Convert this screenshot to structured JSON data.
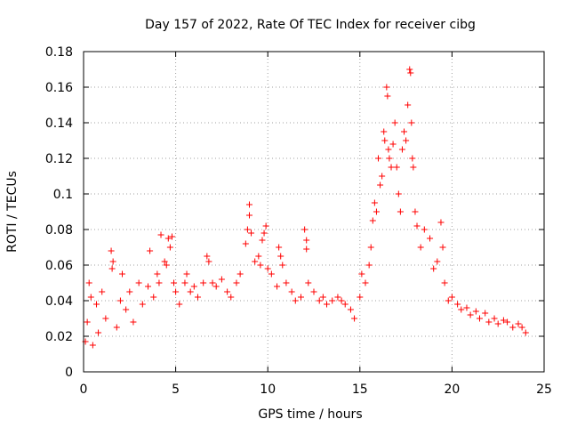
{
  "chart_data": {
    "type": "scatter",
    "title": "Day 157 of 2022, Rate Of TEC Index for receiver cibg",
    "xlabel": "GPS time / hours",
    "ylabel": "ROTI / TECUs",
    "xlim": [
      0,
      25
    ],
    "ylim": [
      0,
      0.18
    ],
    "xticks": [
      "0",
      "5",
      "10",
      "15",
      "20",
      "25"
    ],
    "yticks": [
      "0",
      "0.02",
      "0.04",
      "0.06",
      "0.08",
      "0.1",
      "0.12",
      "0.14",
      "0.16",
      "0.18"
    ],
    "grid": true,
    "marker": "+",
    "color": "#ff0000",
    "series": [
      {
        "points": [
          [
            0.1,
            0.017
          ],
          [
            0.2,
            0.028
          ],
          [
            0.3,
            0.05
          ],
          [
            0.4,
            0.042
          ],
          [
            0.5,
            0.015
          ],
          [
            0.7,
            0.038
          ],
          [
            0.8,
            0.022
          ],
          [
            1.0,
            0.045
          ],
          [
            1.2,
            0.03
          ],
          [
            1.5,
            0.068
          ],
          [
            1.55,
            0.058
          ],
          [
            1.6,
            0.062
          ],
          [
            1.8,
            0.025
          ],
          [
            2.0,
            0.04
          ],
          [
            2.1,
            0.055
          ],
          [
            2.3,
            0.035
          ],
          [
            2.5,
            0.045
          ],
          [
            2.7,
            0.028
          ],
          [
            3.0,
            0.05
          ],
          [
            3.2,
            0.038
          ],
          [
            3.5,
            0.048
          ],
          [
            3.6,
            0.068
          ],
          [
            3.8,
            0.042
          ],
          [
            4.0,
            0.055
          ],
          [
            4.1,
            0.05
          ],
          [
            4.2,
            0.077
          ],
          [
            4.4,
            0.062
          ],
          [
            4.5,
            0.06
          ],
          [
            4.6,
            0.075
          ],
          [
            4.7,
            0.07
          ],
          [
            4.8,
            0.076
          ],
          [
            4.9,
            0.05
          ],
          [
            5.0,
            0.045
          ],
          [
            5.2,
            0.038
          ],
          [
            5.5,
            0.05
          ],
          [
            5.6,
            0.055
          ],
          [
            5.8,
            0.045
          ],
          [
            6.0,
            0.048
          ],
          [
            6.2,
            0.042
          ],
          [
            6.5,
            0.05
          ],
          [
            6.7,
            0.065
          ],
          [
            6.8,
            0.062
          ],
          [
            7.0,
            0.05
          ],
          [
            7.2,
            0.048
          ],
          [
            7.5,
            0.052
          ],
          [
            7.8,
            0.045
          ],
          [
            8.0,
            0.042
          ],
          [
            8.3,
            0.05
          ],
          [
            8.5,
            0.055
          ],
          [
            8.8,
            0.072
          ],
          [
            8.9,
            0.08
          ],
          [
            9.0,
            0.088
          ],
          [
            9.0,
            0.094
          ],
          [
            9.1,
            0.078
          ],
          [
            9.3,
            0.062
          ],
          [
            9.5,
            0.065
          ],
          [
            9.6,
            0.06
          ],
          [
            9.7,
            0.074
          ],
          [
            9.8,
            0.078
          ],
          [
            9.9,
            0.082
          ],
          [
            10.0,
            0.058
          ],
          [
            10.2,
            0.055
          ],
          [
            10.5,
            0.048
          ],
          [
            10.6,
            0.07
          ],
          [
            10.7,
            0.065
          ],
          [
            10.8,
            0.06
          ],
          [
            11.0,
            0.05
          ],
          [
            11.3,
            0.045
          ],
          [
            11.5,
            0.04
          ],
          [
            11.8,
            0.042
          ],
          [
            12.0,
            0.08
          ],
          [
            12.1,
            0.074
          ],
          [
            12.1,
            0.069
          ],
          [
            12.2,
            0.05
          ],
          [
            12.5,
            0.045
          ],
          [
            12.8,
            0.04
          ],
          [
            13.0,
            0.042
          ],
          [
            13.2,
            0.038
          ],
          [
            13.5,
            0.04
          ],
          [
            13.8,
            0.042
          ],
          [
            14.0,
            0.04
          ],
          [
            14.2,
            0.038
          ],
          [
            14.5,
            0.035
          ],
          [
            14.7,
            0.03
          ],
          [
            15.0,
            0.042
          ],
          [
            15.1,
            0.055
          ],
          [
            15.3,
            0.05
          ],
          [
            15.5,
            0.06
          ],
          [
            15.6,
            0.07
          ],
          [
            15.7,
            0.085
          ],
          [
            15.8,
            0.095
          ],
          [
            15.9,
            0.09
          ],
          [
            16.0,
            0.12
          ],
          [
            16.1,
            0.105
          ],
          [
            16.2,
            0.11
          ],
          [
            16.3,
            0.135
          ],
          [
            16.35,
            0.13
          ],
          [
            16.45,
            0.16
          ],
          [
            16.5,
            0.155
          ],
          [
            16.55,
            0.125
          ],
          [
            16.6,
            0.12
          ],
          [
            16.7,
            0.115
          ],
          [
            16.8,
            0.128
          ],
          [
            16.9,
            0.14
          ],
          [
            17.0,
            0.115
          ],
          [
            17.1,
            0.1
          ],
          [
            17.2,
            0.09
          ],
          [
            17.3,
            0.125
          ],
          [
            17.4,
            0.135
          ],
          [
            17.5,
            0.13
          ],
          [
            17.6,
            0.15
          ],
          [
            17.7,
            0.17
          ],
          [
            17.75,
            0.168
          ],
          [
            17.8,
            0.14
          ],
          [
            17.85,
            0.12
          ],
          [
            17.9,
            0.115
          ],
          [
            18.0,
            0.09
          ],
          [
            18.1,
            0.082
          ],
          [
            18.3,
            0.07
          ],
          [
            18.5,
            0.08
          ],
          [
            18.8,
            0.075
          ],
          [
            19.0,
            0.058
          ],
          [
            19.2,
            0.062
          ],
          [
            19.4,
            0.084
          ],
          [
            19.5,
            0.07
          ],
          [
            19.6,
            0.05
          ],
          [
            19.8,
            0.04
          ],
          [
            20.0,
            0.042
          ],
          [
            20.3,
            0.038
          ],
          [
            20.5,
            0.035
          ],
          [
            20.8,
            0.036
          ],
          [
            21.0,
            0.032
          ],
          [
            21.3,
            0.034
          ],
          [
            21.5,
            0.03
          ],
          [
            21.8,
            0.033
          ],
          [
            22.0,
            0.028
          ],
          [
            22.3,
            0.03
          ],
          [
            22.5,
            0.027
          ],
          [
            22.8,
            0.029
          ],
          [
            23.0,
            0.028
          ],
          [
            23.3,
            0.025
          ],
          [
            23.6,
            0.027
          ],
          [
            23.8,
            0.025
          ],
          [
            24.0,
            0.022
          ]
        ]
      }
    ]
  }
}
